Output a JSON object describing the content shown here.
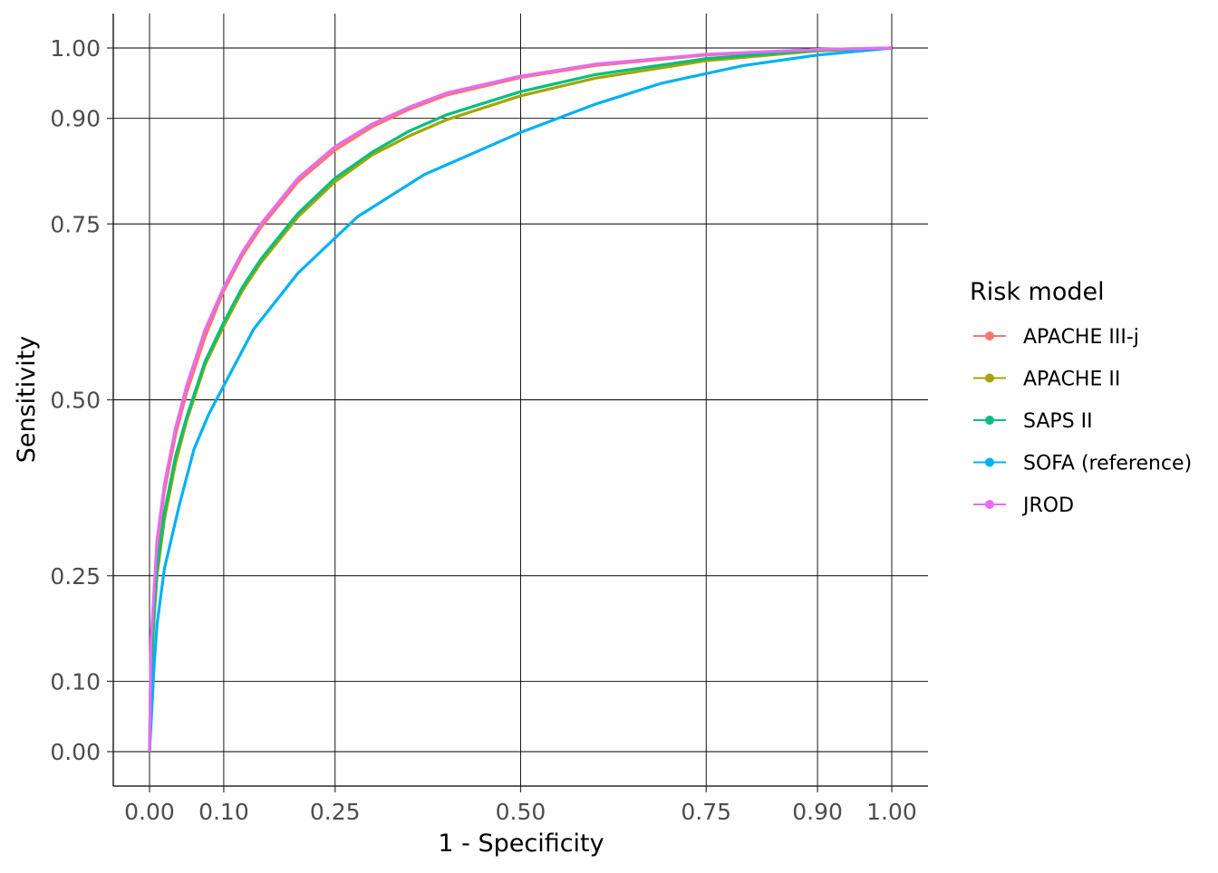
{
  "chart_data": {
    "type": "line",
    "title": "",
    "xlabel": "1 - Specificity",
    "ylabel": "Sensitivity",
    "xlim": [
      0,
      1
    ],
    "ylim": [
      0,
      1
    ],
    "xticks": [
      0,
      0.1,
      0.25,
      0.5,
      0.75,
      0.9,
      1
    ],
    "xtick_labels": [
      "0.00",
      "0.10",
      "0.25",
      "0.50",
      "0.75",
      "0.90",
      "1.00"
    ],
    "yticks": [
      0,
      0.1,
      0.25,
      0.5,
      0.75,
      0.9,
      1
    ],
    "ytick_labels": [
      "0.00",
      "0.10",
      "0.25",
      "0.50",
      "0.75",
      "0.90",
      "1.00"
    ],
    "grid": true,
    "legend": {
      "title": "Risk model",
      "placement": "right"
    },
    "series": [
      {
        "name": "APACHE III-j",
        "color": "#F8766D",
        "x": [
          0,
          0.002,
          0.005,
          0.01,
          0.02,
          0.035,
          0.05,
          0.075,
          0.1,
          0.125,
          0.15,
          0.2,
          0.25,
          0.3,
          0.35,
          0.4,
          0.5,
          0.6,
          0.75,
          0.9,
          1
        ],
        "y": [
          0,
          0.15,
          0.2,
          0.29,
          0.37,
          0.45,
          0.51,
          0.59,
          0.655,
          0.705,
          0.745,
          0.81,
          0.855,
          0.888,
          0.913,
          0.933,
          0.958,
          0.975,
          0.99,
          0.998,
          1
        ]
      },
      {
        "name": "APACHE II",
        "color": "#A3A500",
        "x": [
          0,
          0.002,
          0.005,
          0.01,
          0.02,
          0.035,
          0.05,
          0.075,
          0.1,
          0.125,
          0.15,
          0.2,
          0.25,
          0.3,
          0.35,
          0.4,
          0.5,
          0.6,
          0.75,
          0.9,
          1
        ],
        "y": [
          0,
          0.1,
          0.17,
          0.25,
          0.33,
          0.41,
          0.47,
          0.55,
          0.605,
          0.655,
          0.695,
          0.76,
          0.81,
          0.848,
          0.875,
          0.898,
          0.932,
          0.957,
          0.982,
          0.996,
          1
        ]
      },
      {
        "name": "SAPS II",
        "color": "#00BF7D",
        "x": [
          0,
          0.002,
          0.005,
          0.01,
          0.02,
          0.035,
          0.05,
          0.075,
          0.1,
          0.125,
          0.15,
          0.2,
          0.25,
          0.3,
          0.35,
          0.4,
          0.5,
          0.6,
          0.75,
          0.9,
          1
        ],
        "y": [
          0,
          0.11,
          0.18,
          0.26,
          0.34,
          0.42,
          0.475,
          0.555,
          0.61,
          0.66,
          0.7,
          0.765,
          0.815,
          0.852,
          0.882,
          0.905,
          0.938,
          0.962,
          0.985,
          0.997,
          1
        ]
      },
      {
        "name": "SOFA (reference)",
        "color": "#00B0F6",
        "x": [
          0,
          0.003,
          0.006,
          0.01,
          0.02,
          0.04,
          0.06,
          0.08,
          0.1,
          0.14,
          0.2,
          0.28,
          0.37,
          0.5,
          0.6,
          0.69,
          0.8,
          0.9,
          1
        ],
        "y": [
          0,
          0.06,
          0.12,
          0.18,
          0.26,
          0.35,
          0.43,
          0.48,
          0.52,
          0.6,
          0.68,
          0.76,
          0.82,
          0.88,
          0.92,
          0.95,
          0.975,
          0.99,
          1
        ]
      },
      {
        "name": "JROD",
        "color": "#E76BF3",
        "x": [
          0,
          0.002,
          0.005,
          0.01,
          0.02,
          0.035,
          0.05,
          0.075,
          0.1,
          0.125,
          0.15,
          0.2,
          0.25,
          0.3,
          0.35,
          0.4,
          0.5,
          0.6,
          0.75,
          0.9,
          1
        ],
        "y": [
          0,
          0.16,
          0.21,
          0.3,
          0.38,
          0.46,
          0.52,
          0.6,
          0.66,
          0.71,
          0.75,
          0.815,
          0.86,
          0.892,
          0.916,
          0.936,
          0.96,
          0.977,
          0.991,
          0.998,
          1
        ]
      }
    ]
  }
}
